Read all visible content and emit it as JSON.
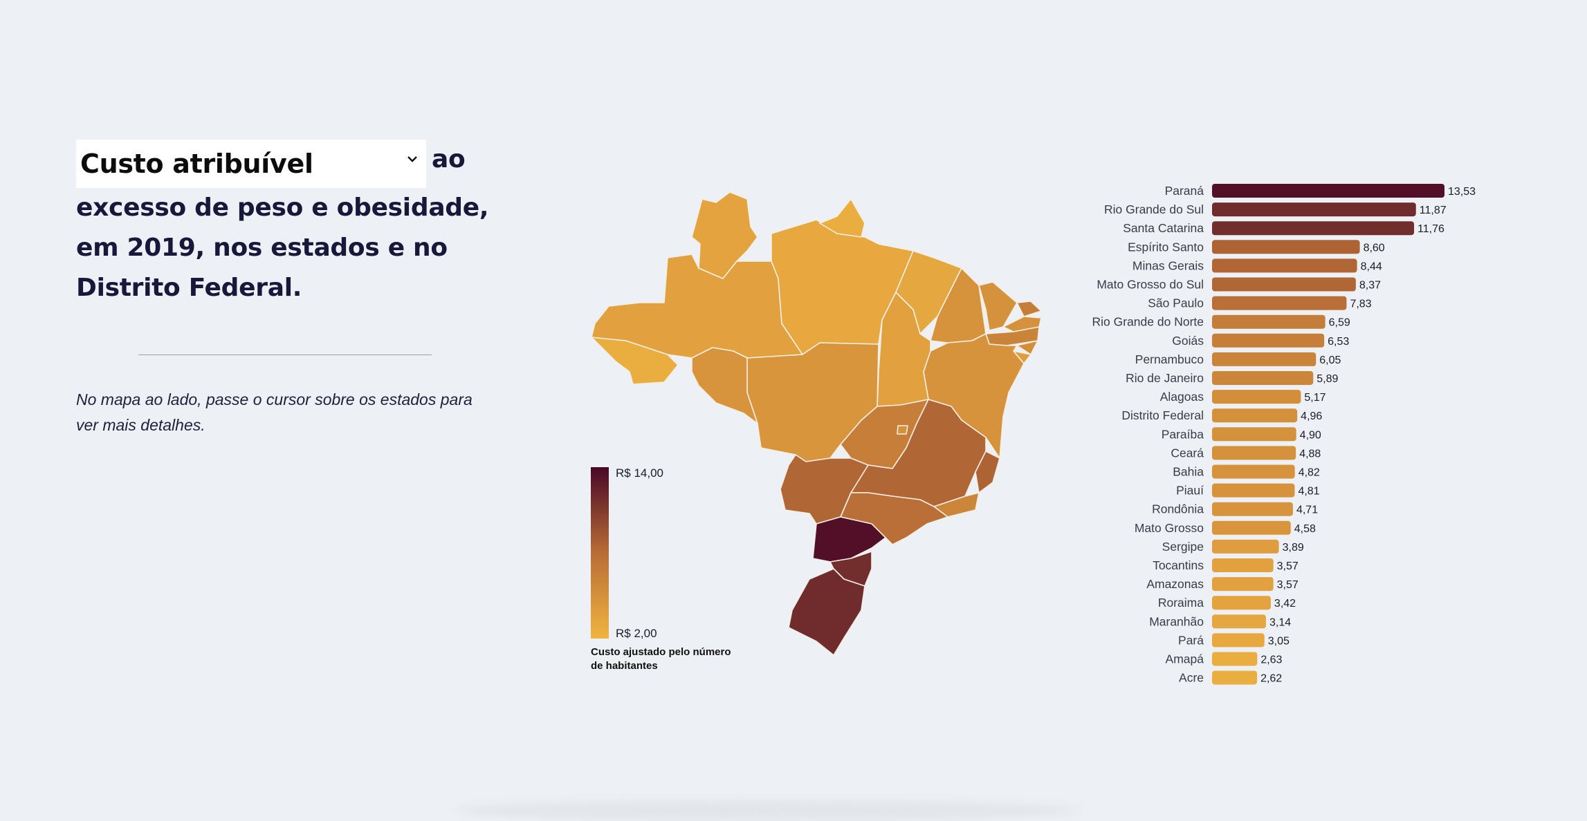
{
  "header": {
    "select": {
      "selected": "Custo atribuível"
    },
    "title_rest_1": "ao",
    "title_rest_2": "excesso de peso e obesidade,",
    "title_rest_3": "em 2019, nos estados e no",
    "title_rest_4": "Distrito Federal."
  },
  "note": "No mapa ao lado, passe o cursor sobre os estados para ver mais detalhes.",
  "legend": {
    "max_label": "R$ 14,00",
    "min_label": "R$ 2,00",
    "caption_1": "Custo ajustado pelo número",
    "caption_2": "de habitantes",
    "color_low": "#f0b441",
    "color_high": "#480826"
  },
  "chart_data": {
    "type": "bar",
    "orientation": "horizontal",
    "categories": [
      "Paraná",
      "Rio Grande do Sul",
      "Santa Catarina",
      "Espírito Santo",
      "Minas Gerais",
      "Mato Grosso do Sul",
      "São Paulo",
      "Rio Grande do Norte",
      "Goiás",
      "Pernambuco",
      "Rio de Janeiro",
      "Alagoas",
      "Distrito Federal",
      "Paraíba",
      "Ceará",
      "Bahia",
      "Piauí",
      "Rondônia",
      "Mato Grosso",
      "Sergipe",
      "Tocantins",
      "Amazonas",
      "Roraima",
      "Maranhão",
      "Pará",
      "Amapá",
      "Acre"
    ],
    "values": [
      13.53,
      11.87,
      11.76,
      8.6,
      8.44,
      8.37,
      7.83,
      6.59,
      6.53,
      6.05,
      5.89,
      5.17,
      4.96,
      4.9,
      4.88,
      4.82,
      4.81,
      4.71,
      4.58,
      3.89,
      3.57,
      3.57,
      3.42,
      3.14,
      3.05,
      2.63,
      2.62
    ],
    "value_labels": [
      "13,53",
      "11,87",
      "11,76",
      "8,60",
      "8,44",
      "8,37",
      "7,83",
      "6,59",
      "6,53",
      "6,05",
      "5,89",
      "5,17",
      "4,96",
      "4,90",
      "4,88",
      "4,82",
      "4,81",
      "4,71",
      "4,58",
      "3,89",
      "3,57",
      "3,57",
      "3,42",
      "3,14",
      "3,05",
      "2,63",
      "2,62"
    ],
    "color_scale": {
      "min": 2.0,
      "max": 14.0,
      "low": "#f0b441",
      "mid": "#b86d36",
      "high": "#480826"
    },
    "xlim": [
      0,
      13.53
    ]
  }
}
